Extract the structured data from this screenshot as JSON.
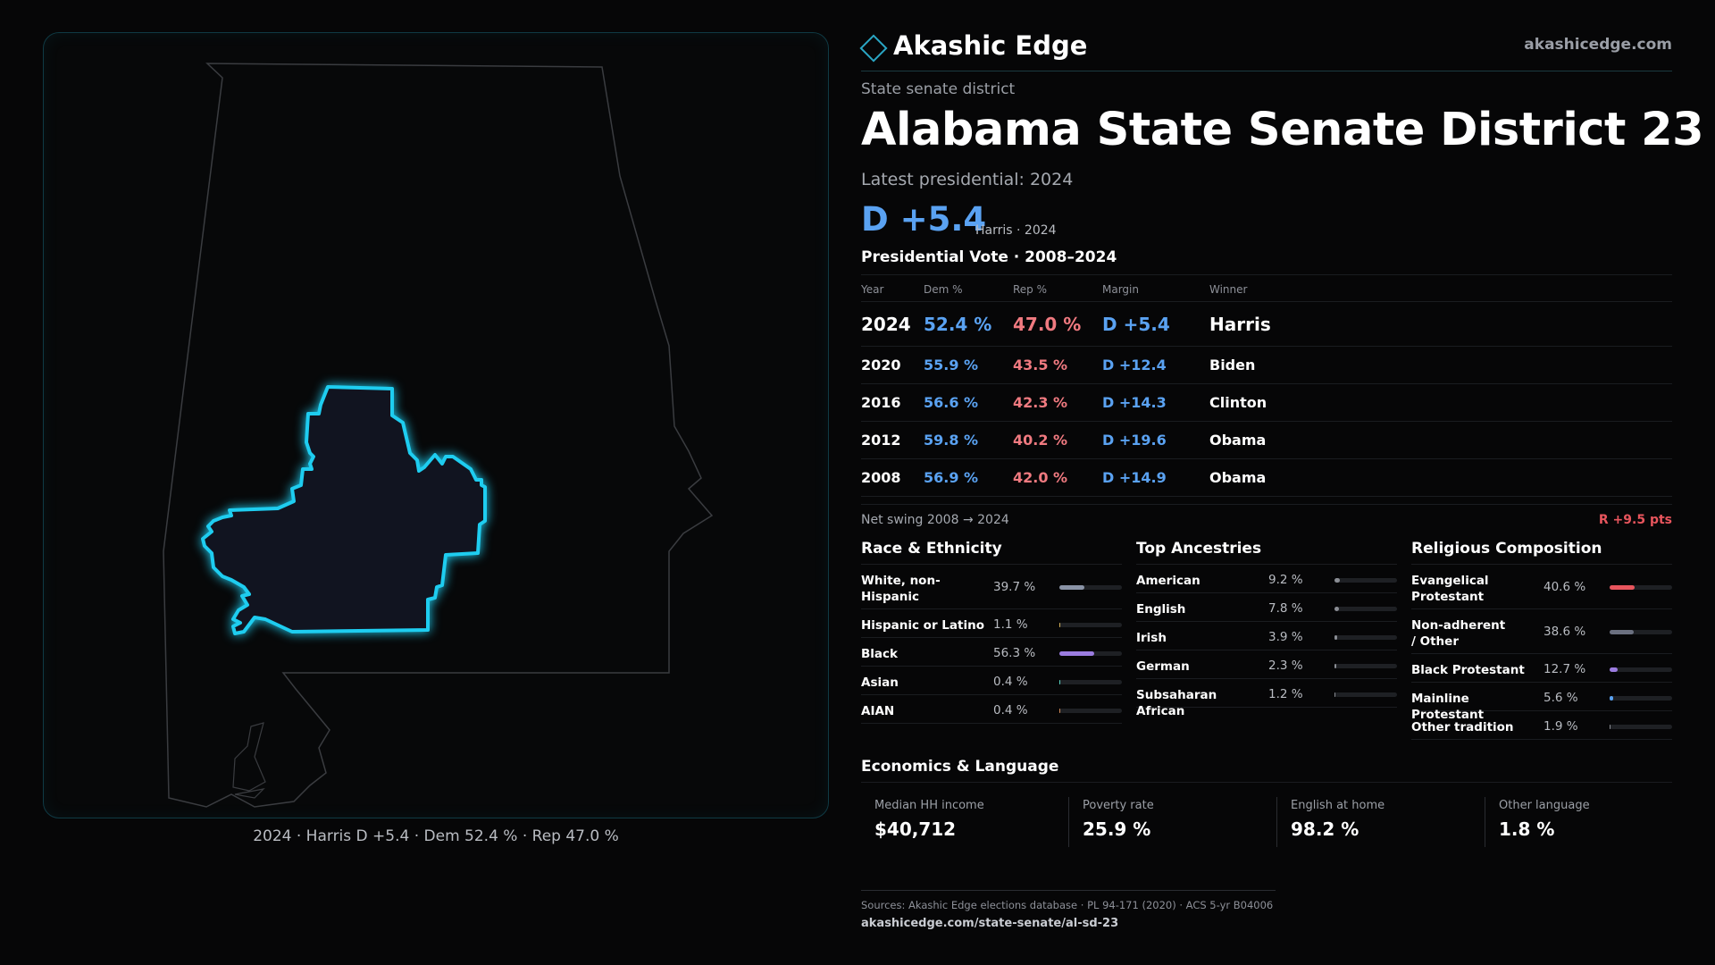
{
  "brand": {
    "name": "Akashic Edge",
    "url": "akashicedge.com",
    "logo_icon": "diamond-logo-icon",
    "accent": "#2aa6c4"
  },
  "header": {
    "kind": "State senate district",
    "title": "Alabama State Senate District 23",
    "latest_label": "Latest presidential: 2024",
    "margin": "D +5.4",
    "margin_sub": "Harris · 2024"
  },
  "map": {
    "caption": "2024 · Harris D +5.4 · Dem 52.4 % · Rep 47.0 %",
    "state_outline_color": "#3a3c40",
    "district_color": "#1ecdf0",
    "district_fill": "#111420"
  },
  "presidential": {
    "title": "Presidential Vote · 2008–2024",
    "headers": {
      "year": "Year",
      "dem": "Dem %",
      "rep": "Rep %",
      "margin": "Margin",
      "winner": "Winner"
    },
    "rows": [
      {
        "year": "2024",
        "dem": "52.4 %",
        "rep": "47.0 %",
        "margin": "D +5.4",
        "winner": "Harris"
      },
      {
        "year": "2020",
        "dem": "55.9 %",
        "rep": "43.5 %",
        "margin": "D +12.4",
        "winner": "Biden"
      },
      {
        "year": "2016",
        "dem": "56.6 %",
        "rep": "42.3 %",
        "margin": "D +14.3",
        "winner": "Clinton"
      },
      {
        "year": "2012",
        "dem": "59.8 %",
        "rep": "40.2 %",
        "margin": "D +19.6",
        "winner": "Obama"
      },
      {
        "year": "2008",
        "dem": "56.9 %",
        "rep": "42.0 %",
        "margin": "D +14.9",
        "winner": "Obama"
      }
    ],
    "swing_label": "Net swing 2008 → 2024",
    "swing_value": "R +9.5 pts",
    "colors": {
      "dem": "#5aa2f2",
      "rep": "#f07a80",
      "swing": "#e8555d"
    }
  },
  "race": {
    "title": "Race & Ethnicity",
    "items": [
      {
        "label": "White, non-Hispanic",
        "pct": "39.7 %",
        "value": 0.397,
        "color": "#8a93a6"
      },
      {
        "label": "Hispanic or Latino",
        "pct": "1.1 %",
        "value": 0.011,
        "color": "#d4b15a"
      },
      {
        "label": "Black",
        "pct": "56.3 %",
        "value": 0.563,
        "color": "#9b7ce0"
      },
      {
        "label": "Asian",
        "pct": "0.4 %",
        "value": 0.004,
        "color": "#5ad0c0"
      },
      {
        "label": "AIAN",
        "pct": "0.4 %",
        "value": 0.004,
        "color": "#d08a5a"
      }
    ]
  },
  "ancestry": {
    "title": "Top Ancestries",
    "items": [
      {
        "label": "American",
        "pct": "9.2 %",
        "value": 0.092,
        "color": "#8a8d94"
      },
      {
        "label": "English",
        "pct": "7.8 %",
        "value": 0.078,
        "color": "#8a8d94"
      },
      {
        "label": "Irish",
        "pct": "3.9 %",
        "value": 0.039,
        "color": "#8a8d94"
      },
      {
        "label": "German",
        "pct": "2.3 %",
        "value": 0.023,
        "color": "#8a8d94"
      },
      {
        "label": "Subsaharan African",
        "pct": "1.2 %",
        "value": 0.012,
        "color": "#8a8d94"
      }
    ]
  },
  "religion": {
    "title": "Religious Composition",
    "items": [
      {
        "label": "Evangelical Protestant",
        "pct": "40.6 %",
        "value": 0.406,
        "color": "#e8555d"
      },
      {
        "label": "Non-adherent / Other",
        "pct": "38.6 %",
        "value": 0.386,
        "color": "#6b7080"
      },
      {
        "label": "Black Protestant",
        "pct": "12.7 %",
        "value": 0.127,
        "color": "#9b7ce0"
      },
      {
        "label": "Mainline Protestant",
        "pct": "5.6 %",
        "value": 0.056,
        "color": "#5aa2f2"
      },
      {
        "label": "Other tradition",
        "pct": "1.9 %",
        "value": 0.019,
        "color": "#8a8d94"
      }
    ]
  },
  "economics": {
    "title": "Economics & Language",
    "items": [
      {
        "label": "Median HH income",
        "value": "$40,712"
      },
      {
        "label": "Poverty rate",
        "value": "25.9 %"
      },
      {
        "label": "English at home",
        "value": "98.2 %"
      },
      {
        "label": "Other language",
        "value": "1.8 %"
      }
    ]
  },
  "footer": {
    "sources": "Sources: Akashic Edge elections database · PL 94-171 (2020) · ACS 5-yr B04006",
    "url": "akashicedge.com/state-senate/al-sd-23"
  }
}
